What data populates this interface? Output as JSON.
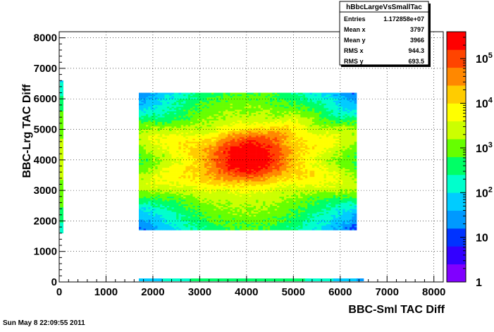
{
  "chart_data": {
    "type": "heatmap",
    "xlabel": "BBC-Sml TAC Diff",
    "ylabel": "BBC-Lrg TAC Diff",
    "xlim": [
      0,
      8200
    ],
    "ylim": [
      0,
      8200
    ],
    "x_ticks": [
      "0",
      "1000",
      "2000",
      "3000",
      "4000",
      "5000",
      "6000",
      "7000",
      "8000"
    ],
    "y_ticks": [
      "0",
      "1000",
      "2000",
      "3000",
      "4000",
      "5000",
      "6000",
      "7000",
      "8000"
    ],
    "grid": true,
    "z_scale": "log",
    "zlim": [
      1,
      400000
    ],
    "colorbar_ticks": [
      {
        "base": "1",
        "exp": "",
        "value": 1
      },
      {
        "base": "10",
        "exp": "",
        "value": 10
      },
      {
        "base": "10",
        "exp": "2",
        "value": 100
      },
      {
        "base": "10",
        "exp": "3",
        "value": 1000
      },
      {
        "base": "10",
        "exp": "4",
        "value": 10000
      },
      {
        "base": "10",
        "exp": "5",
        "value": 100000
      }
    ],
    "palette": [
      "#8000ff",
      "#3300ff",
      "#0033ff",
      "#0099ff",
      "#00ccff",
      "#00ffcc",
      "#00ff66",
      "#66ff00",
      "#ccff00",
      "#ffff00",
      "#ffcc00",
      "#ff8800",
      "#ff4400",
      "#ff0000"
    ],
    "blobs": [
      {
        "cx": 4050,
        "cy": 4100,
        "sx": 330,
        "sy": 330,
        "amp": 400000,
        "rot": 0
      },
      {
        "cx": 4000,
        "cy": 4000,
        "sx": 1200,
        "sy": 250,
        "amp": 15000,
        "rot": 0.35
      },
      {
        "cx": 4000,
        "cy": 4000,
        "sx": 1200,
        "sy": 250,
        "amp": 15000,
        "rot": -0.35
      },
      {
        "cx": 4000,
        "cy": 4000,
        "sx": 950,
        "sy": 950,
        "amp": 3000,
        "rot": 0
      },
      {
        "cx": 4000,
        "cy": 4000,
        "sx": 700,
        "sy": 1500,
        "amp": 1500,
        "rot": 0
      },
      {
        "cx": 4000,
        "cy": 4000,
        "sx": 1500,
        "sy": 700,
        "amp": 1500,
        "rot": 0
      }
    ],
    "diagonal_blob": {
      "cx": 4100,
      "cy": 4200,
      "sx": 600,
      "sy": 200,
      "amp": 60000,
      "rot": 0.785
    },
    "data_extent": {
      "xmin": 1700,
      "xmax": 6350,
      "ymin": 1700,
      "ymax": 6200
    },
    "y_edge_strip": {
      "x": 0,
      "y_from": 1600,
      "y_to": 6600
    },
    "x_edge_strip": {
      "y": 0,
      "x_from": 1700,
      "x_to": 6500
    }
  },
  "stats_box": {
    "title": "hBbcLargeVsSmallTac",
    "rows": [
      {
        "label": "Entries",
        "value": "1.172858e+07"
      },
      {
        "label": "Mean x",
        "value": "3797"
      },
      {
        "label": "Mean y",
        "value": "3966"
      },
      {
        "label": "RMS x",
        "value": "944.3"
      },
      {
        "label": "RMS y",
        "value": "693.5"
      }
    ]
  },
  "footer": {
    "timestamp": "Sun May  8 22:09:55 2011"
  }
}
